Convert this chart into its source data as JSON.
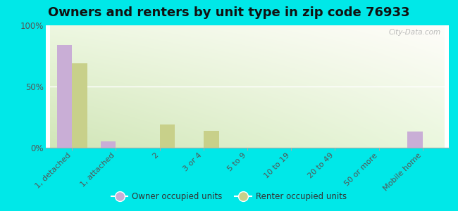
{
  "title": "Owners and renters by unit type in zip code 76933",
  "categories": [
    "1, detached",
    "1, attached",
    "2",
    "3 or 4",
    "5 to 9",
    "10 to 19",
    "20 to 49",
    "50 or more",
    "Mobile home"
  ],
  "owner_values": [
    84,
    5,
    0,
    0,
    0,
    0,
    0,
    0,
    13
  ],
  "renter_values": [
    69,
    0,
    19,
    14,
    0,
    0,
    0,
    0,
    0
  ],
  "owner_color": "#c9aed6",
  "renter_color": "#c8d08a",
  "bg_outer": "#00e8e8",
  "yticks": [
    0,
    50,
    100
  ],
  "ytick_labels": [
    "0%",
    "50%",
    "100%"
  ],
  "bar_width": 0.35,
  "title_fontsize": 13,
  "watermark": "City-Data.com"
}
